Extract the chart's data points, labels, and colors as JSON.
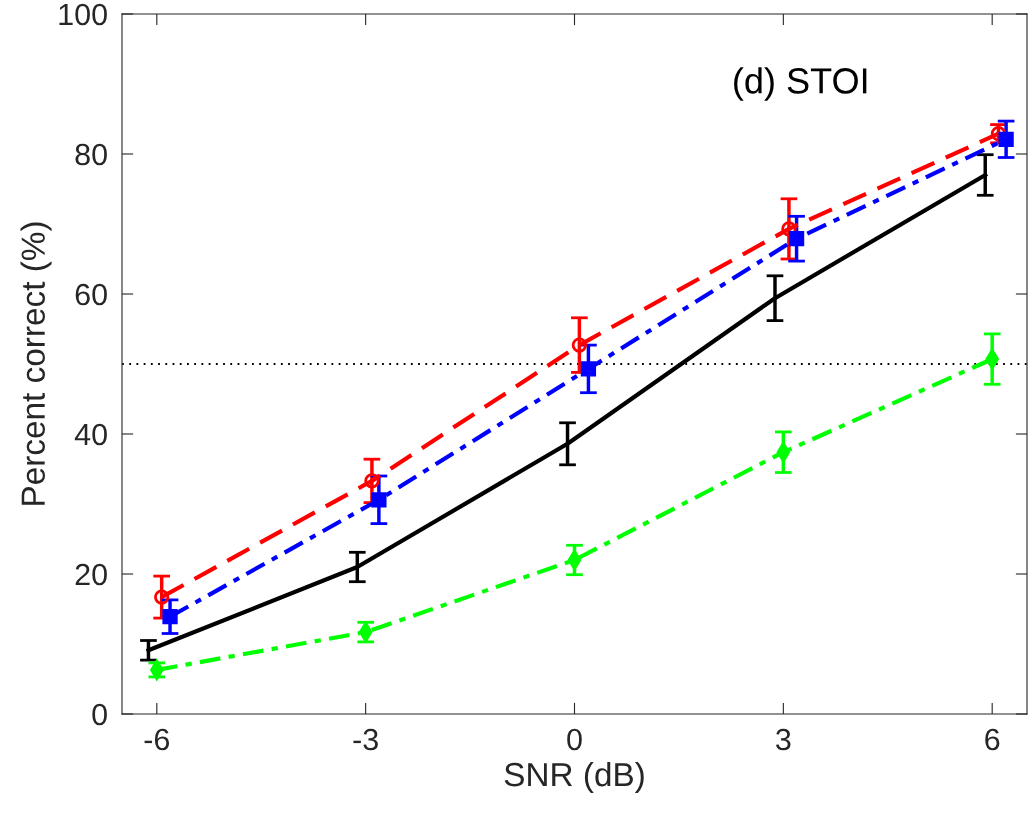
{
  "chart_data": {
    "type": "line",
    "xlabel": "SNR (dB)",
    "ylabel": "Percent correct (%)",
    "annotations": [
      "(d) STOI"
    ],
    "xlim": [
      -6.5,
      6.5
    ],
    "xticks": [
      -6,
      -3,
      0,
      3,
      6
    ],
    "ylim": [
      0,
      100
    ],
    "yticks": [
      0,
      20,
      40,
      60,
      80,
      100
    ],
    "grid": false,
    "legend": false,
    "ref_lines": [
      {
        "axis": "y",
        "value": 50,
        "color": "#000000",
        "line_style": "dotted"
      }
    ],
    "series": [
      {
        "color": "#ff0000",
        "marker": "circle",
        "line_style": "dashed",
        "x": [
          -5.93,
          -2.91,
          0.07,
          3.08,
          6.09
        ],
        "values": [
          16.7,
          33.3,
          52.7,
          69.3,
          82.9
        ],
        "errors": [
          3.0,
          3.1,
          3.9,
          4.3,
          1.3
        ]
      },
      {
        "color": "#0000ff",
        "marker": "square",
        "line_style": "dashdot",
        "x": [
          -5.81,
          -2.81,
          0.2,
          3.19,
          6.2
        ],
        "values": [
          13.9,
          30.6,
          49.3,
          67.9,
          82.1
        ],
        "errors": [
          2.4,
          3.4,
          3.4,
          3.2,
          2.6
        ]
      },
      {
        "color": "#000000",
        "marker": "none",
        "line_style": "solid",
        "x": [
          -6.12,
          -3.12,
          -0.1,
          2.88,
          5.9
        ],
        "values": [
          9.1,
          21.0,
          38.6,
          59.4,
          77.0
        ],
        "errors": [
          1.4,
          2.1,
          3.0,
          3.2,
          2.9
        ]
      },
      {
        "color": "#00ff00",
        "marker": "diamond",
        "line_style": "dashdot",
        "x": [
          -6.0,
          -3.0,
          0.0,
          3.0,
          6.0
        ],
        "values": [
          6.3,
          11.7,
          22.0,
          37.4,
          50.7
        ],
        "errors": [
          1.0,
          1.4,
          2.1,
          2.9,
          3.6
        ]
      }
    ]
  }
}
